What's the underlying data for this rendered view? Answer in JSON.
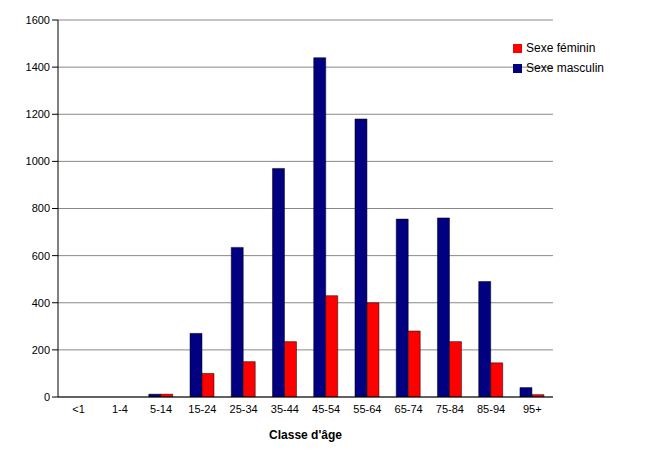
{
  "chart_data": {
    "type": "bar",
    "x_label": "Classe d'âge",
    "categories": [
      "<1",
      "1-4",
      "5-14",
      "15-24",
      "25-34",
      "35-44",
      "45-54",
      "55-64",
      "65-74",
      "75-84",
      "85-94",
      "95+"
    ],
    "series": [
      {
        "name": "Sexe masculin",
        "color": "#000080",
        "values": [
          0,
          0,
          12,
          270,
          635,
          970,
          1440,
          1180,
          755,
          760,
          490,
          40
        ]
      },
      {
        "name": "Sexe féminin",
        "color": "#ff0000",
        "values": [
          0,
          0,
          12,
          100,
          150,
          235,
          430,
          400,
          280,
          235,
          145,
          10
        ]
      }
    ],
    "ylim": [
      0,
      1600
    ],
    "yticks": [
      0,
      200,
      400,
      600,
      800,
      1000,
      1200,
      1400,
      1600
    ],
    "grid": true,
    "legend": "top-right"
  }
}
